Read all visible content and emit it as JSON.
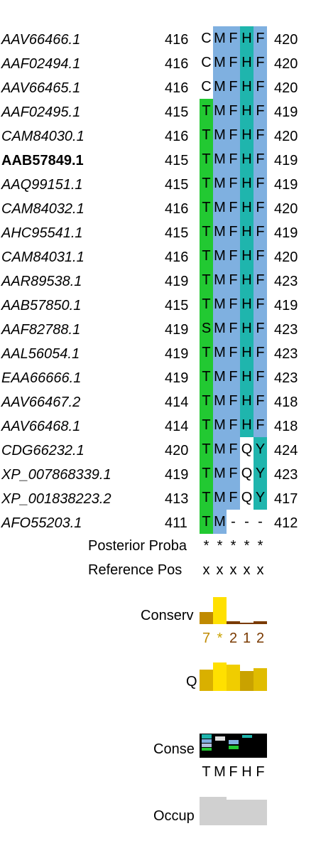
{
  "alignment": {
    "rows": [
      {
        "name": "AAV66466.1",
        "start": "416",
        "end": "420",
        "residues": [
          "C",
          "M",
          "F",
          "H",
          "F"
        ],
        "colors": [
          "none",
          "#7fb0e0",
          "#7fb0e0",
          "#1fb5ad",
          "#7fb0e0"
        ],
        "bold": false
      },
      {
        "name": "AAF02494.1",
        "start": "416",
        "end": "420",
        "residues": [
          "C",
          "M",
          "F",
          "H",
          "F"
        ],
        "colors": [
          "none",
          "#7fb0e0",
          "#7fb0e0",
          "#1fb5ad",
          "#7fb0e0"
        ],
        "bold": false
      },
      {
        "name": "AAV66465.1",
        "start": "416",
        "end": "420",
        "residues": [
          "C",
          "M",
          "F",
          "H",
          "F"
        ],
        "colors": [
          "none",
          "#7fb0e0",
          "#7fb0e0",
          "#1fb5ad",
          "#7fb0e0"
        ],
        "bold": false
      },
      {
        "name": "AAF02495.1",
        "start": "415",
        "end": "419",
        "residues": [
          "T",
          "M",
          "F",
          "H",
          "F"
        ],
        "colors": [
          "#22c932",
          "#7fb0e0",
          "#7fb0e0",
          "#1fb5ad",
          "#7fb0e0"
        ],
        "bold": false
      },
      {
        "name": "CAM84030.1",
        "start": "416",
        "end": "420",
        "residues": [
          "T",
          "M",
          "F",
          "H",
          "F"
        ],
        "colors": [
          "#22c932",
          "#7fb0e0",
          "#7fb0e0",
          "#1fb5ad",
          "#7fb0e0"
        ],
        "bold": false
      },
      {
        "name": "AAB57849.1",
        "start": "415",
        "end": "419",
        "residues": [
          "T",
          "M",
          "F",
          "H",
          "F"
        ],
        "colors": [
          "#22c932",
          "#7fb0e0",
          "#7fb0e0",
          "#1fb5ad",
          "#7fb0e0"
        ],
        "bold": true
      },
      {
        "name": "AAQ99151.1",
        "start": "415",
        "end": "419",
        "residues": [
          "T",
          "M",
          "F",
          "H",
          "F"
        ],
        "colors": [
          "#22c932",
          "#7fb0e0",
          "#7fb0e0",
          "#1fb5ad",
          "#7fb0e0"
        ],
        "bold": false
      },
      {
        "name": "CAM84032.1",
        "start": "416",
        "end": "420",
        "residues": [
          "T",
          "M",
          "F",
          "H",
          "F"
        ],
        "colors": [
          "#22c932",
          "#7fb0e0",
          "#7fb0e0",
          "#1fb5ad",
          "#7fb0e0"
        ],
        "bold": false
      },
      {
        "name": "AHC95541.1",
        "start": "415",
        "end": "419",
        "residues": [
          "T",
          "M",
          "F",
          "H",
          "F"
        ],
        "colors": [
          "#22c932",
          "#7fb0e0",
          "#7fb0e0",
          "#1fb5ad",
          "#7fb0e0"
        ],
        "bold": false
      },
      {
        "name": "CAM84031.1",
        "start": "416",
        "end": "420",
        "residues": [
          "T",
          "M",
          "F",
          "H",
          "F"
        ],
        "colors": [
          "#22c932",
          "#7fb0e0",
          "#7fb0e0",
          "#1fb5ad",
          "#7fb0e0"
        ],
        "bold": false
      },
      {
        "name": "AAR89538.1",
        "start": "419",
        "end": "423",
        "residues": [
          "T",
          "M",
          "F",
          "H",
          "F"
        ],
        "colors": [
          "#22c932",
          "#7fb0e0",
          "#7fb0e0",
          "#1fb5ad",
          "#7fb0e0"
        ],
        "bold": false
      },
      {
        "name": "AAB57850.1",
        "start": "415",
        "end": "419",
        "residues": [
          "T",
          "M",
          "F",
          "H",
          "F"
        ],
        "colors": [
          "#22c932",
          "#7fb0e0",
          "#7fb0e0",
          "#1fb5ad",
          "#7fb0e0"
        ],
        "bold": false
      },
      {
        "name": "AAF82788.1",
        "start": "419",
        "end": "423",
        "residues": [
          "S",
          "M",
          "F",
          "H",
          "F"
        ],
        "colors": [
          "#22c932",
          "#7fb0e0",
          "#7fb0e0",
          "#1fb5ad",
          "#7fb0e0"
        ],
        "bold": false
      },
      {
        "name": "AAL56054.1",
        "start": "419",
        "end": "423",
        "residues": [
          "T",
          "M",
          "F",
          "H",
          "F"
        ],
        "colors": [
          "#22c932",
          "#7fb0e0",
          "#7fb0e0",
          "#1fb5ad",
          "#7fb0e0"
        ],
        "bold": false
      },
      {
        "name": "EAA66666.1",
        "start": "419",
        "end": "423",
        "residues": [
          "T",
          "M",
          "F",
          "H",
          "F"
        ],
        "colors": [
          "#22c932",
          "#7fb0e0",
          "#7fb0e0",
          "#1fb5ad",
          "#7fb0e0"
        ],
        "bold": false
      },
      {
        "name": "AAV66467.2",
        "start": "414",
        "end": "418",
        "residues": [
          "T",
          "M",
          "F",
          "H",
          "F"
        ],
        "colors": [
          "#22c932",
          "#7fb0e0",
          "#7fb0e0",
          "#1fb5ad",
          "#7fb0e0"
        ],
        "bold": false
      },
      {
        "name": "AAV66468.1",
        "start": "414",
        "end": "418",
        "residues": [
          "T",
          "M",
          "F",
          "H",
          "F"
        ],
        "colors": [
          "#22c932",
          "#7fb0e0",
          "#7fb0e0",
          "#1fb5ad",
          "#7fb0e0"
        ],
        "bold": false
      },
      {
        "name": "CDG66232.1",
        "start": "420",
        "end": "424",
        "residues": [
          "T",
          "M",
          "F",
          "Q",
          "Y"
        ],
        "colors": [
          "#22c932",
          "#7fb0e0",
          "#7fb0e0",
          "none",
          "#1fb5ad"
        ],
        "bold": false
      },
      {
        "name": "XP_007868339.1",
        "start": "419",
        "end": "423",
        "residues": [
          "T",
          "M",
          "F",
          "Q",
          "Y"
        ],
        "colors": [
          "#22c932",
          "#7fb0e0",
          "#7fb0e0",
          "none",
          "#1fb5ad"
        ],
        "bold": false
      },
      {
        "name": "XP_001838223.2",
        "start": "413",
        "end": "417",
        "residues": [
          "T",
          "M",
          "F",
          "Q",
          "Y"
        ],
        "colors": [
          "#22c932",
          "#7fb0e0",
          "#7fb0e0",
          "none",
          "#1fb5ad"
        ],
        "bold": false
      },
      {
        "name": "AFO55203.1",
        "start": "411",
        "end": "412",
        "residues": [
          "T",
          "M",
          "-",
          "-",
          "-"
        ],
        "colors": [
          "#22c932",
          "#7fb0e0",
          "none",
          "none",
          "none"
        ],
        "bold": false
      }
    ]
  },
  "annotations": {
    "posterior_label": "Posterior Proba",
    "posterior_marks": [
      "*",
      "*",
      "*",
      "*",
      "*"
    ],
    "reference_label": "Reference Pos",
    "reference_marks": [
      "x",
      "x",
      "x",
      "x",
      "x"
    ],
    "conservation_label": "Conserv",
    "conservation_levels": [
      0.45,
      1.0,
      0.1,
      0.05,
      0.1
    ],
    "conservation_colors": [
      "#c08a00",
      "#ffe000",
      "#7a3a00",
      "#7a3a00",
      "#7a3a00"
    ],
    "conservation_numbers": [
      "7",
      "*",
      "2",
      "1",
      "2"
    ],
    "conservation_number_colors": [
      "#c08a00",
      "#c9a200",
      "#7a3a00",
      "#7a3a00",
      "#7a3a00"
    ],
    "quality_label": "Q",
    "quality_levels": [
      0.75,
      1.0,
      0.92,
      0.7,
      0.8
    ],
    "quality_colors": [
      "#d9b000",
      "#ffe000",
      "#f0cd00",
      "#c9a200",
      "#e0bc00"
    ],
    "consensus_label": "Conse",
    "consensus_sequence": [
      "T",
      "M",
      "F",
      "H",
      "F"
    ],
    "occupancy_label": "Occup",
    "occupancy_levels": [
      1.0,
      1.0,
      0.9,
      0.9,
      0.9
    ],
    "occupancy_color": "#d0d0d0"
  }
}
